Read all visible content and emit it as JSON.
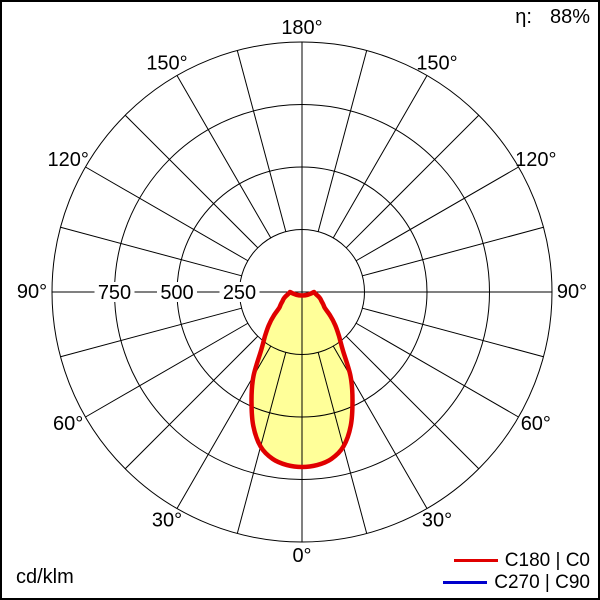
{
  "header": {
    "eta_label": "η:",
    "eta_value": "88%"
  },
  "footer": {
    "unit_label": "cd/klm"
  },
  "legend": [
    {
      "label": "C180 | C0",
      "color": "#e00000"
    },
    {
      "label": "C270 | C90",
      "color": "#0000cc"
    }
  ],
  "chart_data": {
    "type": "polar_line",
    "description": "Luminous intensity distribution curve (photometric polar diagram)",
    "unit": "cd/klm",
    "efficiency_eta": "88%",
    "radial_ticks": [
      250,
      500,
      750,
      1000
    ],
    "radial_tick_labels": [
      "250",
      "500",
      "750"
    ],
    "spoke_step_deg": 15,
    "angle_tick_labels": [
      {
        "text": "180°",
        "angle_deg": 180
      },
      {
        "text": "150°",
        "angle_deg": -150
      },
      {
        "text": "150°",
        "angle_deg": 150
      },
      {
        "text": "120°",
        "angle_deg": -120
      },
      {
        "text": "120°",
        "angle_deg": 120
      },
      {
        "text": "90°",
        "angle_deg": -90
      },
      {
        "text": "90°",
        "angle_deg": 90
      },
      {
        "text": "60°",
        "angle_deg": -60
      },
      {
        "text": "60°",
        "angle_deg": 60
      },
      {
        "text": "30°",
        "angle_deg": -30
      },
      {
        "text": "30°",
        "angle_deg": 30
      },
      {
        "text": "0°",
        "angle_deg": 0
      }
    ],
    "series": [
      {
        "name": "C180 | C0",
        "color": "#e00000",
        "fill": "#ffff99",
        "symmetric": true,
        "gamma_deg": [
          0,
          5,
          10,
          15,
          20,
          25,
          30,
          35,
          40,
          45,
          50,
          55,
          60,
          65,
          70,
          75,
          80,
          85,
          90
        ],
        "intensity_cd_per_klm": [
          700,
          695,
          678,
          640,
          570,
          478,
          388,
          285,
          230,
          188,
          148,
          112,
          98,
          86,
          78,
          68,
          58,
          52,
          48
        ]
      },
      {
        "name": "C270 | C90",
        "color": "#0000cc",
        "visible_in_plot": false,
        "gamma_deg": [],
        "intensity_cd_per_klm": []
      }
    ]
  }
}
